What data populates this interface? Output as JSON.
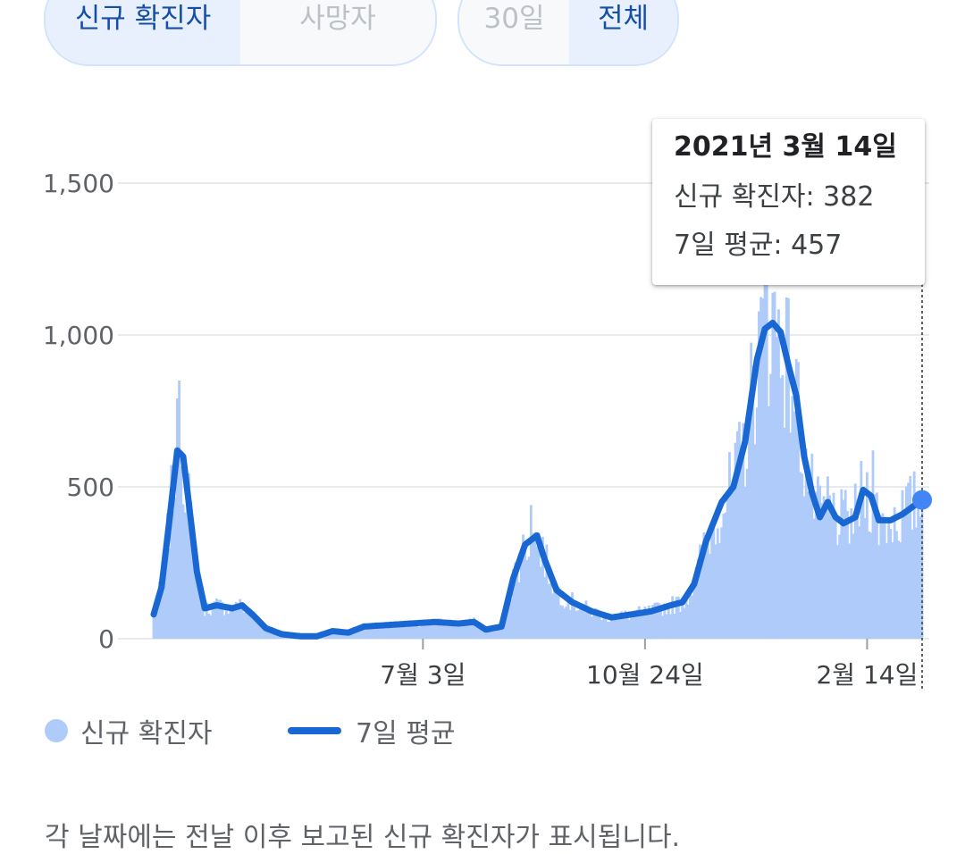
{
  "toggles": {
    "metric": [
      {
        "label": "신규 확진자",
        "selected": true
      },
      {
        "label": "사망자",
        "selected": false
      }
    ],
    "range": [
      {
        "label": "30일",
        "selected": false
      },
      {
        "label": "전체",
        "selected": true
      }
    ]
  },
  "tooltip": {
    "date": "2021년 3월 14일",
    "new_cases": "신규 확진자: 382",
    "avg": "7일 평균: 457"
  },
  "legend": {
    "bars": "신규 확진자",
    "line": "7일 평균"
  },
  "footnote": "각 날짜에는 전날 이후 보고된 신규 확진자가 표시됩니다.",
  "colors": {
    "bar": "#aecbfa",
    "line": "#1967d2",
    "grid": "#e8eaed",
    "dot": "#4285f4"
  },
  "chart_data": {
    "type": "bar",
    "title": "",
    "xlabel": "",
    "ylabel": "",
    "ylim": [
      0,
      1650
    ],
    "yticks": [
      {
        "value": 0,
        "label": "0"
      },
      {
        "value": 500,
        "label": "500"
      },
      {
        "value": 1000,
        "label": "1,000"
      },
      {
        "value": 1500,
        "label": "1,500"
      }
    ],
    "xticks": [
      {
        "date": "2020-07-03",
        "label": "7월 3일"
      },
      {
        "date": "2020-10-24",
        "label": "10월 24일"
      },
      {
        "date": "2021-02-14",
        "label": "2월 14일"
      }
    ],
    "x_start": "2020-02-17",
    "x_end": "2021-03-14",
    "bar_peaks": [
      {
        "date": "2020-03-01",
        "value": 850
      },
      {
        "date": "2020-08-27",
        "value": 440
      },
      {
        "date": "2020-12-25",
        "value": 1170
      },
      {
        "date": "2021-02-17",
        "value": 620
      }
    ],
    "series": [
      {
        "name": "7일 평균",
        "points": [
          [
            "2020-02-17",
            80
          ],
          [
            "2020-02-21",
            170
          ],
          [
            "2020-02-25",
            390
          ],
          [
            "2020-02-29",
            620
          ],
          [
            "2020-03-03",
            600
          ],
          [
            "2020-03-06",
            440
          ],
          [
            "2020-03-10",
            220
          ],
          [
            "2020-03-14",
            100
          ],
          [
            "2020-03-20",
            110
          ],
          [
            "2020-03-28",
            100
          ],
          [
            "2020-04-02",
            110
          ],
          [
            "2020-04-08",
            75
          ],
          [
            "2020-04-14",
            35
          ],
          [
            "2020-04-22",
            15
          ],
          [
            "2020-05-02",
            8
          ],
          [
            "2020-05-10",
            8
          ],
          [
            "2020-05-18",
            25
          ],
          [
            "2020-05-26",
            20
          ],
          [
            "2020-06-03",
            40
          ],
          [
            "2020-06-15",
            45
          ],
          [
            "2020-06-27",
            50
          ],
          [
            "2020-07-09",
            55
          ],
          [
            "2020-07-21",
            50
          ],
          [
            "2020-07-29",
            55
          ],
          [
            "2020-08-04",
            30
          ],
          [
            "2020-08-12",
            40
          ],
          [
            "2020-08-18",
            200
          ],
          [
            "2020-08-24",
            310
          ],
          [
            "2020-08-30",
            340
          ],
          [
            "2020-09-03",
            260
          ],
          [
            "2020-09-09",
            160
          ],
          [
            "2020-09-17",
            120
          ],
          [
            "2020-09-27",
            90
          ],
          [
            "2020-10-07",
            70
          ],
          [
            "2020-10-17",
            80
          ],
          [
            "2020-10-27",
            90
          ],
          [
            "2020-11-06",
            110
          ],
          [
            "2020-11-12",
            120
          ],
          [
            "2020-11-18",
            180
          ],
          [
            "2020-11-24",
            320
          ],
          [
            "2020-12-02",
            450
          ],
          [
            "2020-12-08",
            500
          ],
          [
            "2020-12-14",
            650
          ],
          [
            "2020-12-20",
            920
          ],
          [
            "2020-12-24",
            1020
          ],
          [
            "2020-12-28",
            1040
          ],
          [
            "2021-01-01",
            1010
          ],
          [
            "2021-01-05",
            900
          ],
          [
            "2021-01-09",
            800
          ],
          [
            "2021-01-13",
            600
          ],
          [
            "2021-01-17",
            480
          ],
          [
            "2021-01-21",
            400
          ],
          [
            "2021-01-25",
            450
          ],
          [
            "2021-01-29",
            400
          ],
          [
            "2021-02-02",
            380
          ],
          [
            "2021-02-08",
            400
          ],
          [
            "2021-02-12",
            490
          ],
          [
            "2021-02-16",
            470
          ],
          [
            "2021-02-20",
            390
          ],
          [
            "2021-02-26",
            390
          ],
          [
            "2021-03-04",
            410
          ],
          [
            "2021-03-14",
            457
          ]
        ]
      }
    ]
  }
}
